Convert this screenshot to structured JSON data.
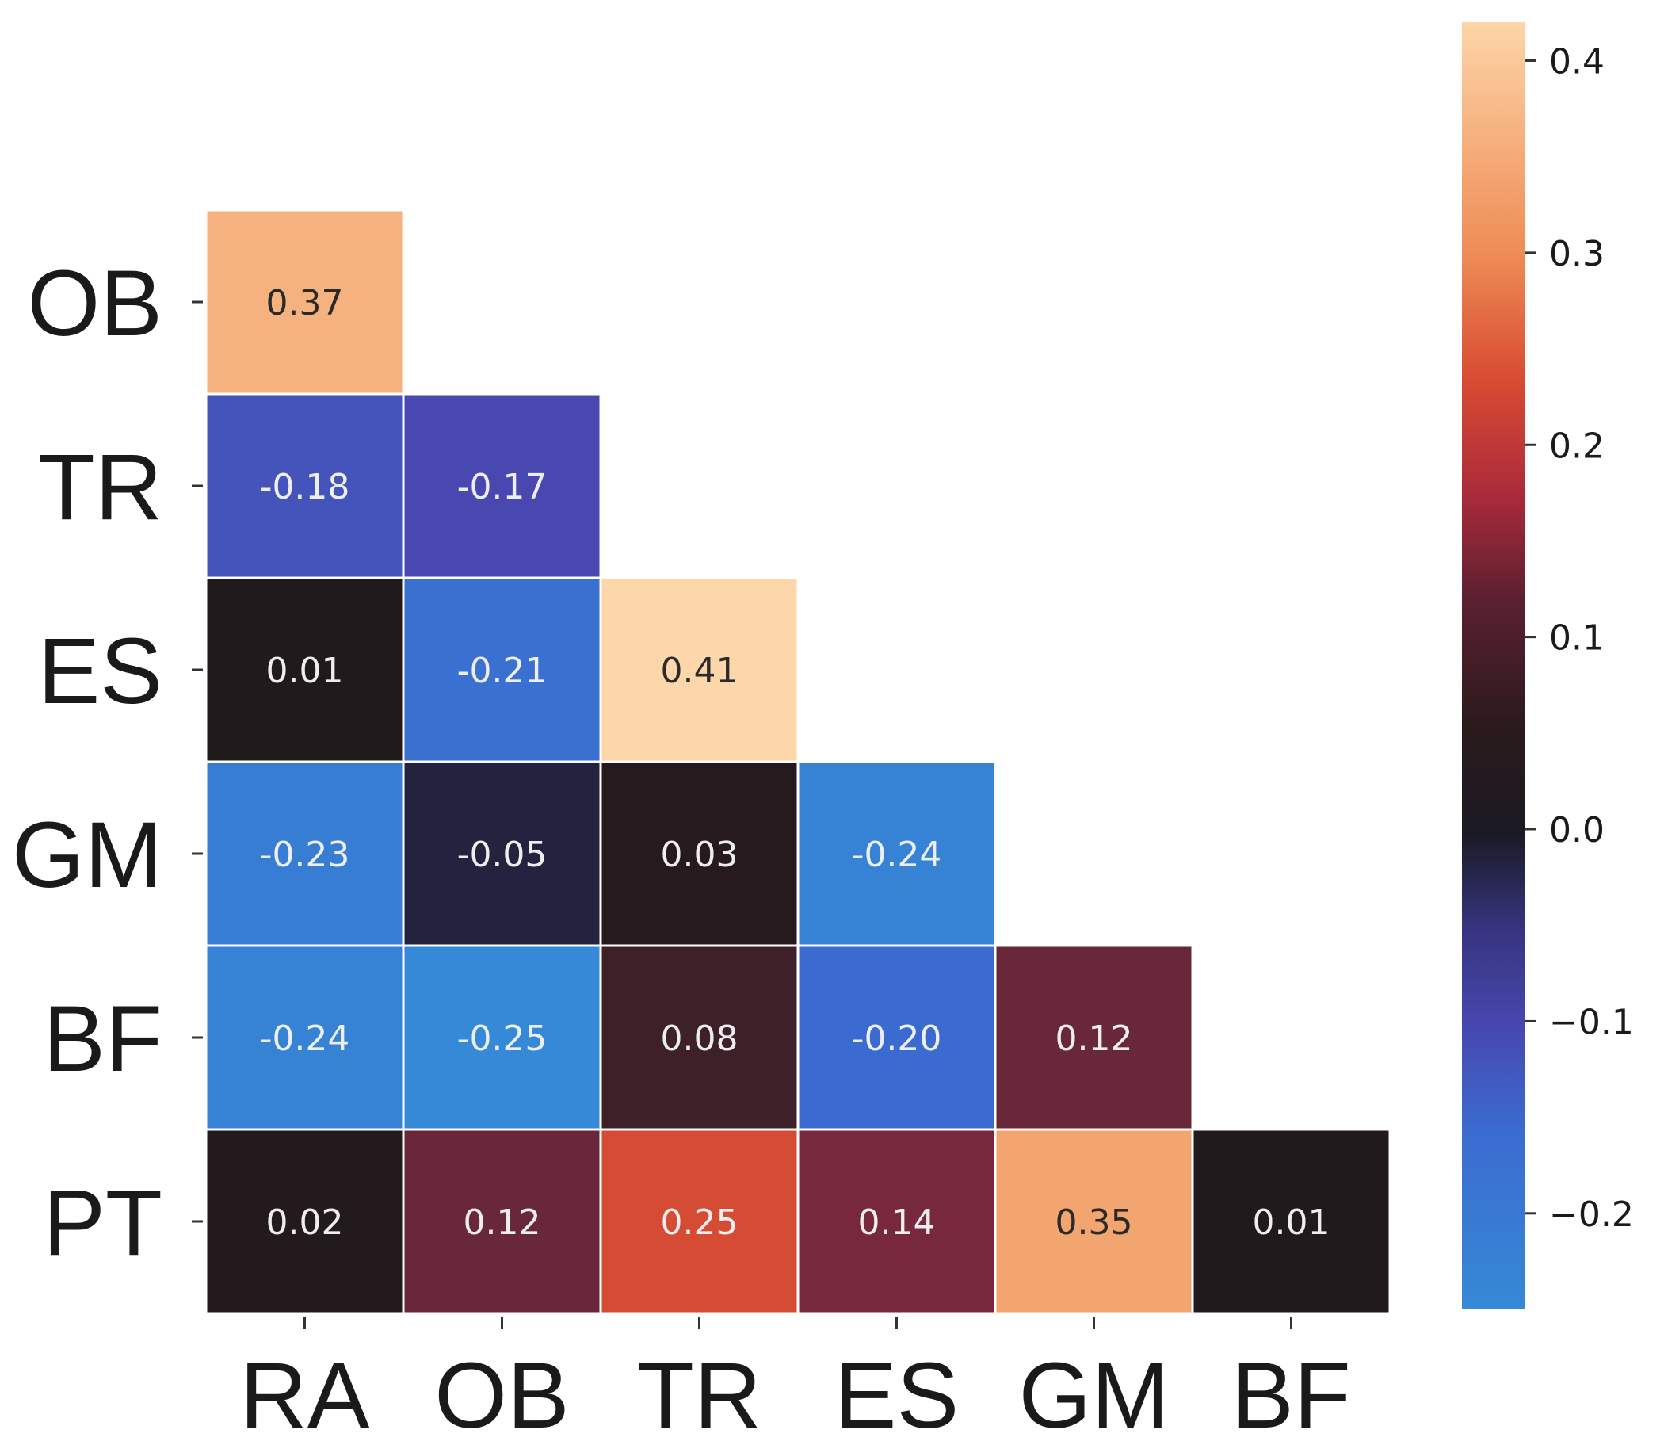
{
  "chart_data": {
    "type": "heatmap",
    "title": "",
    "xlabel": "",
    "ylabel": "",
    "x_categories": [
      "RA",
      "OB",
      "TR",
      "ES",
      "GM",
      "BF"
    ],
    "y_categories": [
      "OB",
      "TR",
      "ES",
      "GM",
      "BF",
      "PT"
    ],
    "mask": "upper-triangle",
    "values": [
      [
        0.37,
        null,
        null,
        null,
        null,
        null
      ],
      [
        -0.18,
        -0.17,
        null,
        null,
        null,
        null
      ],
      [
        0.01,
        -0.21,
        0.41,
        null,
        null,
        null
      ],
      [
        -0.23,
        -0.05,
        0.03,
        -0.24,
        null,
        null
      ],
      [
        -0.24,
        -0.25,
        0.08,
        -0.2,
        0.12,
        null
      ],
      [
        0.02,
        0.12,
        0.25,
        0.14,
        0.35,
        0.01
      ]
    ],
    "value_labels": [
      [
        "0.37",
        null,
        null,
        null,
        null,
        null
      ],
      [
        "-0.18",
        "-0.17",
        null,
        null,
        null,
        null
      ],
      [
        "0.01",
        "-0.21",
        "0.41",
        null,
        null,
        null
      ],
      [
        "-0.23",
        "-0.05",
        "0.03",
        "-0.24",
        null,
        null
      ],
      [
        "-0.24",
        "-0.25",
        "0.08",
        "-0.20",
        "0.12",
        null
      ],
      [
        "0.02",
        "0.12",
        "0.25",
        "0.14",
        "0.35",
        "0.01"
      ]
    ],
    "colorbar": {
      "vmin": -0.25,
      "vmax": 0.42,
      "ticks": [
        0.4,
        0.3,
        0.2,
        0.1,
        0.0,
        -0.1,
        -0.2
      ],
      "tick_labels": [
        "0.4",
        "0.3",
        "0.2",
        "0.1",
        "0.0",
        "−0.1",
        "−0.2"
      ],
      "colormap": "icefire",
      "placement": "right"
    },
    "colors": {
      "cell_border": "#ffffff",
      "axis_text": "#1a1a1a",
      "dark_text": "#2a2a2a",
      "light_text": "#eeeeee"
    }
  }
}
